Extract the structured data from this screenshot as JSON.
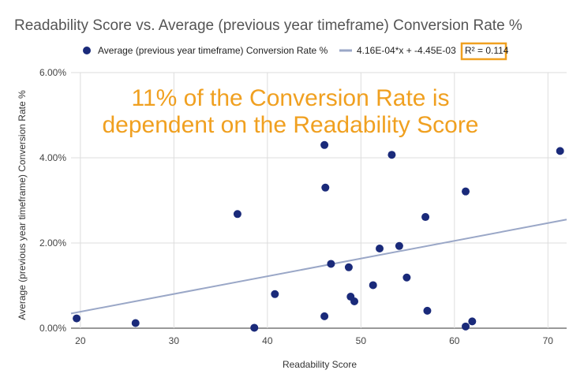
{
  "chart_data": {
    "type": "scatter",
    "title": "Readability Score vs. Average (previous year timeframe) Conversion Rate %",
    "xlabel": "Readability Score",
    "ylabel": "Average (previous year timeframe) Conversion Rate %",
    "xlim": [
      19,
      72
    ],
    "ylim": [
      0,
      6
    ],
    "x_ticks": [
      "20",
      "30",
      "40",
      "50",
      "60",
      "70"
    ],
    "x_tick_values": [
      20,
      30,
      40,
      50,
      60,
      70
    ],
    "y_ticks": [
      "0.00%",
      "2.00%",
      "4.00%",
      "6.00%"
    ],
    "y_tick_values": [
      0,
      2,
      4,
      6
    ],
    "grid": true,
    "legend_position": "top",
    "series": [
      {
        "name": "Average (previous year timeframe) Conversion Rate %",
        "color": "#1a2a7a",
        "points": [
          [
            19.6,
            0.23
          ],
          [
            25.9,
            0.12
          ],
          [
            36.8,
            2.68
          ],
          [
            38.6,
            0.01
          ],
          [
            40.8,
            0.8
          ],
          [
            46.1,
            4.3
          ],
          [
            46.2,
            3.3
          ],
          [
            46.1,
            0.28
          ],
          [
            46.8,
            1.51
          ],
          [
            48.7,
            1.43
          ],
          [
            48.9,
            0.74
          ],
          [
            49.3,
            0.63
          ],
          [
            51.3,
            1.01
          ],
          [
            52.0,
            1.87
          ],
          [
            53.3,
            4.07
          ],
          [
            54.1,
            1.93
          ],
          [
            54.9,
            1.19
          ],
          [
            56.9,
            2.61
          ],
          [
            57.1,
            0.41
          ],
          [
            61.2,
            3.21
          ],
          [
            61.2,
            0.04
          ],
          [
            61.9,
            0.16
          ],
          [
            71.3,
            4.16
          ]
        ]
      }
    ],
    "trendline": {
      "label": "4.16E-04*x + -4.45E-03",
      "r2_label": "R² = 0.114",
      "slope": 0.0416,
      "intercept": -0.445,
      "color": "#9aa7c7"
    },
    "annotation": {
      "lines": [
        "11% of the Conversion Rate is",
        "dependent on the Readability Score"
      ],
      "color": "#f0a020"
    },
    "highlight_box_color": "#f0a020"
  }
}
